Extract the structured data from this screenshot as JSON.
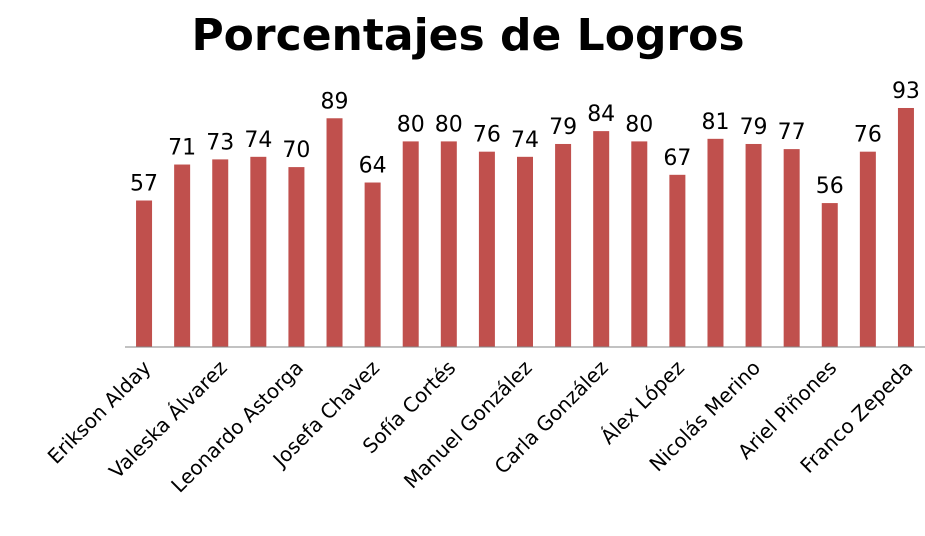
{
  "chart_data": {
    "type": "bar",
    "title": "Porcentajes de Logros",
    "categories": [
      "Erikson Alday",
      null,
      "Valeska Álvarez",
      null,
      "Leonardo Astorga",
      null,
      "Josefa Chavez",
      null,
      "Sofía Cortés",
      null,
      "Manuel González",
      null,
      "Carla González",
      null,
      "Álex López",
      null,
      "Nicolás Merino",
      null,
      "Ariel Piñones",
      null,
      "Franco Zepeda"
    ],
    "values": [
      57,
      71,
      73,
      74,
      70,
      89,
      64,
      80,
      80,
      76,
      74,
      79,
      84,
      80,
      67,
      81,
      79,
      77,
      56,
      76,
      93
    ],
    "color": "#c0504d",
    "ylim": [
      0,
      100
    ]
  }
}
